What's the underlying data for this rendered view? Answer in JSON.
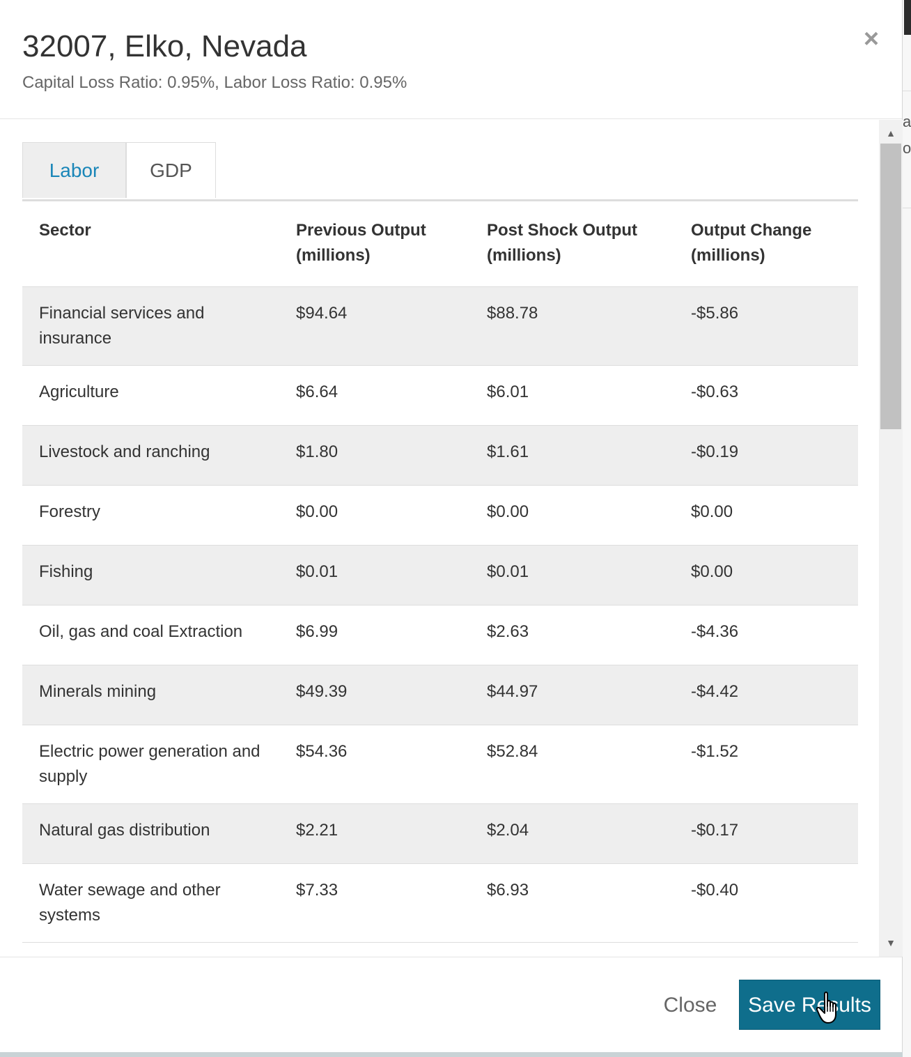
{
  "modal": {
    "title": "32007, Elko, Nevada",
    "subtitle": "Capital Loss Ratio: 0.95%, Labor Loss Ratio: 0.95%",
    "close_icon": "×"
  },
  "tabs": [
    {
      "label": "Labor",
      "active": true
    },
    {
      "label": "GDP",
      "active": false
    }
  ],
  "table": {
    "headers": [
      "Sector",
      "Previous Output (millions)",
      "Post Shock Output (millions)",
      "Output Change (millions)"
    ],
    "rows": [
      [
        "Financial services and insurance",
        "$94.64",
        "$88.78",
        "-$5.86"
      ],
      [
        "Agriculture",
        "$6.64",
        "$6.01",
        "-$0.63"
      ],
      [
        "Livestock and ranching",
        "$1.80",
        "$1.61",
        "-$0.19"
      ],
      [
        "Forestry",
        "$0.00",
        "$0.00",
        "$0.00"
      ],
      [
        "Fishing",
        "$0.01",
        "$0.01",
        "$0.00"
      ],
      [
        "Oil, gas and coal Extraction",
        "$6.99",
        "$2.63",
        "-$4.36"
      ],
      [
        "Minerals mining",
        "$49.39",
        "$44.97",
        "-$4.42"
      ],
      [
        "Electric power generation and supply",
        "$54.36",
        "$52.84",
        "-$1.52"
      ],
      [
        "Natural gas distribution",
        "$2.21",
        "$2.04",
        "-$0.17"
      ],
      [
        "Water sewage and other systems",
        "$7.33",
        "$6.93",
        "-$0.40"
      ]
    ]
  },
  "footer": {
    "close_label": "Close",
    "save_label": "Save Results"
  },
  "background": {
    "peek_chars": [
      "a",
      "o"
    ]
  },
  "colors": {
    "accent": "#0f6e8c",
    "active_tab_text": "#1a86b8",
    "stripe": "#eeeeee"
  }
}
